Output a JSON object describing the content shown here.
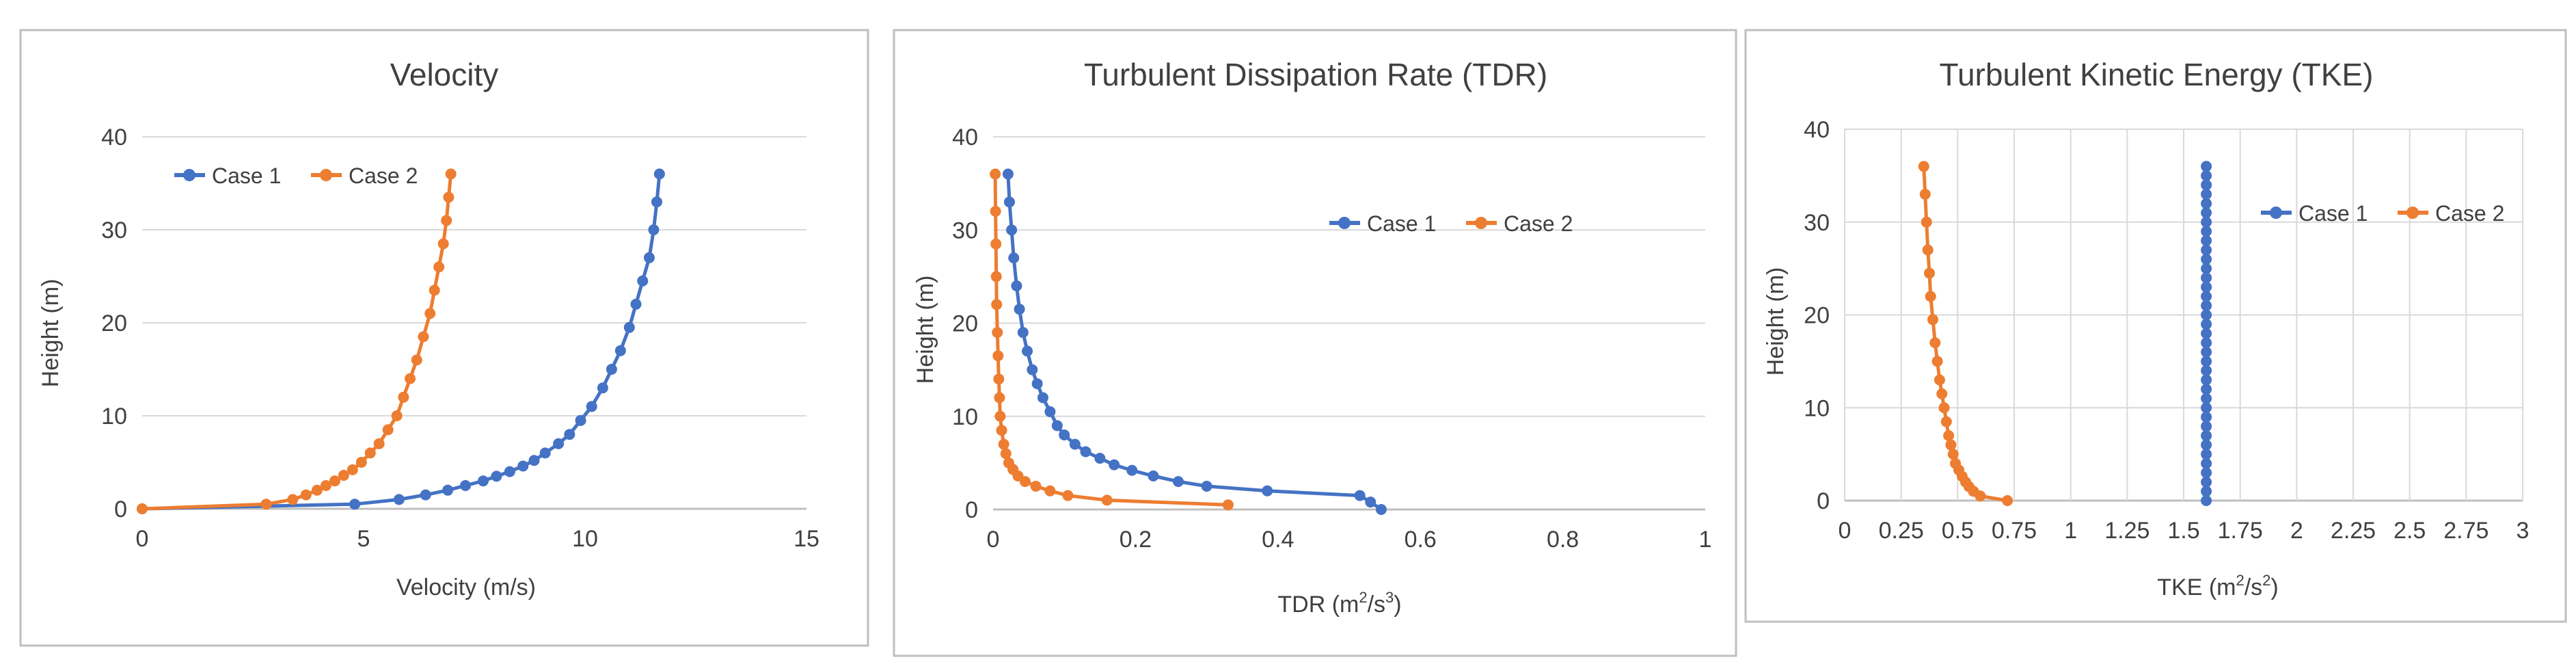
{
  "chart_data": [
    {
      "type": "line",
      "title": "Velocity",
      "xlabel": "Velocity (m/s)",
      "ylabel": "Height (m)",
      "xlim": [
        0,
        15
      ],
      "ylim": [
        0,
        40
      ],
      "xticks": [
        0,
        5,
        10,
        15
      ],
      "yticks": [
        0,
        10,
        20,
        30,
        40
      ],
      "xtick_labels": [
        "0",
        "5",
        "10",
        "15"
      ],
      "ytick_labels": [
        "0",
        "10",
        "20",
        "30",
        "40"
      ],
      "grid": "horizontal",
      "legend": "top-left",
      "series": [
        {
          "name": "Case 1",
          "color": "#4472C4",
          "x": [
            0,
            4.8,
            5.8,
            6.4,
            6.9,
            7.3,
            7.7,
            8.0,
            8.3,
            8.6,
            8.85,
            9.1,
            9.4,
            9.65,
            9.9,
            10.15,
            10.4,
            10.6,
            10.8,
            11.0,
            11.15,
            11.3,
            11.45,
            11.55,
            11.62,
            11.68
          ],
          "y": [
            0,
            0.5,
            1.0,
            1.5,
            2.0,
            2.5,
            3.0,
            3.5,
            4.0,
            4.6,
            5.2,
            6.0,
            7.0,
            8.0,
            9.5,
            11.0,
            13.0,
            15.0,
            17.0,
            19.5,
            22.0,
            24.5,
            27.0,
            30.0,
            33.0,
            36.0
          ]
        },
        {
          "name": "Case 2",
          "color": "#ED7D31",
          "x": [
            0,
            2.8,
            3.4,
            3.7,
            3.95,
            4.15,
            4.35,
            4.55,
            4.75,
            4.95,
            5.15,
            5.35,
            5.55,
            5.75,
            5.9,
            6.05,
            6.2,
            6.35,
            6.5,
            6.6,
            6.7,
            6.8,
            6.87,
            6.92,
            6.97
          ],
          "y": [
            0,
            0.5,
            1.0,
            1.5,
            2.0,
            2.5,
            3.0,
            3.6,
            4.2,
            5.0,
            6.0,
            7.0,
            8.5,
            10.0,
            12.0,
            14.0,
            16.0,
            18.5,
            21.0,
            23.5,
            26.0,
            28.5,
            31.0,
            33.5,
            36.0
          ]
        }
      ]
    },
    {
      "type": "line",
      "title": "Turbulent Dissipation Rate (TDR)",
      "xlabel_main": "TDR (m",
      "xlabel_sup1": "2",
      "xlabel_mid": "/s",
      "xlabel_sup2": "3",
      "xlabel_end": ")",
      "ylabel": "Height (m)",
      "xlim": [
        0,
        1
      ],
      "ylim": [
        0,
        40
      ],
      "xticks": [
        0,
        0.2,
        0.4,
        0.6,
        0.8,
        1
      ],
      "yticks": [
        0,
        10,
        20,
        30,
        40
      ],
      "xtick_labels": [
        "0",
        "0.2",
        "0.4",
        "0.6",
        "0.8",
        "1"
      ],
      "ytick_labels": [
        "0",
        "10",
        "20",
        "30",
        "40"
      ],
      "grid": "horizontal",
      "legend": "top-right",
      "series": [
        {
          "name": "Case 1",
          "color": "#4472C4",
          "x": [
            0.545,
            0.53,
            0.515,
            0.385,
            0.3,
            0.26,
            0.225,
            0.195,
            0.17,
            0.15,
            0.13,
            0.115,
            0.1,
            0.09,
            0.08,
            0.07,
            0.062,
            0.055,
            0.048,
            0.042,
            0.037,
            0.033,
            0.029,
            0.026,
            0.023,
            0.021
          ],
          "y": [
            0,
            0.8,
            1.5,
            2.0,
            2.5,
            3.0,
            3.6,
            4.2,
            4.8,
            5.5,
            6.2,
            7.0,
            8.0,
            9.0,
            10.5,
            12.0,
            13.5,
            15.0,
            17.0,
            19.0,
            21.5,
            24.0,
            27.0,
            30.0,
            33.0,
            36.0
          ]
        },
        {
          "name": "Case 2",
          "color": "#ED7D31",
          "x": [
            0.33,
            0.16,
            0.105,
            0.08,
            0.06,
            0.045,
            0.035,
            0.028,
            0.022,
            0.018,
            0.015,
            0.012,
            0.01,
            0.009,
            0.008,
            0.007,
            0.006,
            0.005,
            0.0045,
            0.004,
            0.0035,
            0.003
          ],
          "y": [
            0.5,
            1.0,
            1.5,
            2.0,
            2.5,
            3.0,
            3.6,
            4.3,
            5.0,
            6.0,
            7.0,
            8.5,
            10.0,
            12.0,
            14.0,
            16.5,
            19.0,
            22.0,
            25.0,
            28.5,
            32.0,
            36.0
          ]
        }
      ]
    },
    {
      "type": "line",
      "title": "Turbulent Kinetic Energy (TKE)",
      "xlabel_main": "TKE (m",
      "xlabel_sup1": "2",
      "xlabel_mid": "/s",
      "xlabel_sup2": "2",
      "xlabel_end": ")",
      "ylabel": "Height (m)",
      "xlim": [
        0,
        3
      ],
      "ylim": [
        0,
        40
      ],
      "xticks": [
        0,
        0.25,
        0.5,
        0.75,
        1,
        1.25,
        1.5,
        1.75,
        2,
        2.25,
        2.5,
        2.75,
        3
      ],
      "yticks": [
        0,
        10,
        20,
        30,
        40
      ],
      "xtick_labels": [
        "0",
        "0.25",
        "0.5",
        "0.75",
        "1",
        "1.25",
        "1.5",
        "1.75",
        "2",
        "2.25",
        "2.5",
        "2.75",
        "3"
      ],
      "ytick_labels": [
        "0",
        "10",
        "20",
        "30",
        "40"
      ],
      "grid": "both",
      "legend": "top-right",
      "series": [
        {
          "name": "Case 1",
          "color": "#4472C4",
          "x": [
            1.6,
            1.6,
            1.6,
            1.6,
            1.6,
            1.6,
            1.6,
            1.6,
            1.6,
            1.6,
            1.6,
            1.6,
            1.6,
            1.6,
            1.6,
            1.6,
            1.6,
            1.6,
            1.6,
            1.6,
            1.6,
            1.6,
            1.6,
            1.6,
            1.6,
            1.6,
            1.6,
            1.6,
            1.6,
            1.6,
            1.6,
            1.6,
            1.6,
            1.6,
            1.6,
            1.6,
            1.6
          ],
          "y": [
            0,
            1,
            2,
            3,
            4,
            5,
            6,
            7,
            8,
            9,
            10,
            11,
            12,
            13,
            14,
            15,
            16,
            17,
            18,
            19,
            20,
            21,
            22,
            23,
            24,
            25,
            26,
            27,
            28,
            29,
            30,
            31,
            32,
            33,
            34,
            35,
            36
          ]
        },
        {
          "name": "Case 2",
          "color": "#ED7D31",
          "x": [
            0.72,
            0.6,
            0.57,
            0.55,
            0.535,
            0.52,
            0.505,
            0.49,
            0.48,
            0.47,
            0.46,
            0.45,
            0.44,
            0.43,
            0.42,
            0.41,
            0.4,
            0.39,
            0.38,
            0.375,
            0.368,
            0.362,
            0.356,
            0.35
          ],
          "y": [
            0,
            0.5,
            1.0,
            1.5,
            2.0,
            2.6,
            3.3,
            4.0,
            5.0,
            6.0,
            7.0,
            8.5,
            10.0,
            11.5,
            13.0,
            15.0,
            17.0,
            19.5,
            22.0,
            24.5,
            27.0,
            30.0,
            33.0,
            36.0
          ]
        }
      ]
    }
  ]
}
